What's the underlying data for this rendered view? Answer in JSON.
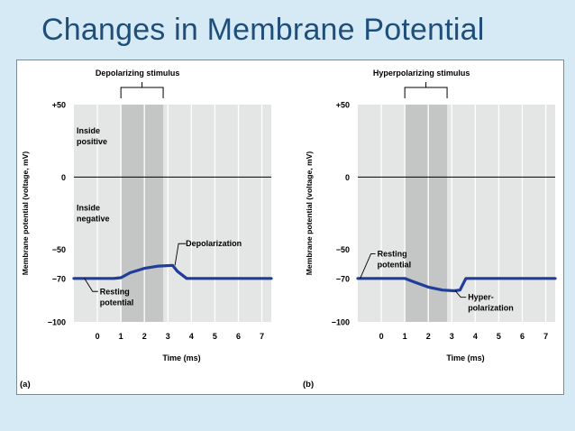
{
  "slide": {
    "title": "Changes in Membrane Potential"
  },
  "chart_data": [
    {
      "panel": "(a)",
      "type": "line",
      "stimulus_label": "Depolarizing stimulus",
      "stimulus_ms": [
        1.0,
        2.8
      ],
      "ylabel": "Membrane potential (voltage, mV)",
      "xlabel": "Time (ms)",
      "ylim": [
        -100,
        50
      ],
      "xlim": [
        -1,
        7.4
      ],
      "yticks": [
        "+50",
        "0",
        "−50",
        "−70",
        "−100"
      ],
      "ytick_values": [
        50,
        0,
        -50,
        -70,
        -100
      ],
      "xticks": [
        "0",
        "1",
        "2",
        "3",
        "4",
        "5",
        "6",
        "7"
      ],
      "region_labels": [
        {
          "line1": "Inside",
          "line2": "positive"
        },
        {
          "line1": "Inside",
          "line2": "negative"
        }
      ],
      "annotations": [
        {
          "line1": "Depolarization",
          "line2": ""
        },
        {
          "line1": "Resting",
          "line2": "potential"
        }
      ],
      "line_color": "#1f3d99",
      "series": [
        {
          "x": [
            -1,
            0.2,
            0.7,
            1.0,
            1.4,
            2.0,
            2.6,
            3.2,
            3.4,
            3.8,
            5.0,
            7.4
          ],
          "y": [
            -70,
            -70,
            -70,
            -69.5,
            -66,
            -63,
            -61.5,
            -61,
            -65,
            -70,
            -70,
            -70
          ]
        }
      ]
    },
    {
      "panel": "(b)",
      "type": "line",
      "stimulus_label": "Hyperpolarizing stimulus",
      "stimulus_ms": [
        1.0,
        2.8
      ],
      "ylabel": "Membrane potential (voltage, mV)",
      "xlabel": "Time (ms)",
      "ylim": [
        -100,
        50
      ],
      "xlim": [
        -1,
        7.4
      ],
      "yticks": [
        "+50",
        "0",
        "−50",
        "−70",
        "−100"
      ],
      "ytick_values": [
        50,
        0,
        -50,
        -70,
        -100
      ],
      "xticks": [
        "0",
        "1",
        "2",
        "3",
        "4",
        "5",
        "6",
        "7"
      ],
      "region_labels": [],
      "annotations": [
        {
          "line1": "Resting",
          "line2": "potential"
        },
        {
          "line1": "Hyper-",
          "line2": "polarization"
        }
      ],
      "line_color": "#1f3d99",
      "series": [
        {
          "x": [
            -1,
            0.5,
            1.0,
            1.4,
            2.0,
            2.6,
            3.1,
            3.35,
            3.6,
            5.0,
            7.4
          ],
          "y": [
            -70,
            -70,
            -70,
            -72.5,
            -76,
            -78,
            -78.5,
            -78,
            -70,
            -70,
            -70
          ]
        }
      ]
    }
  ]
}
